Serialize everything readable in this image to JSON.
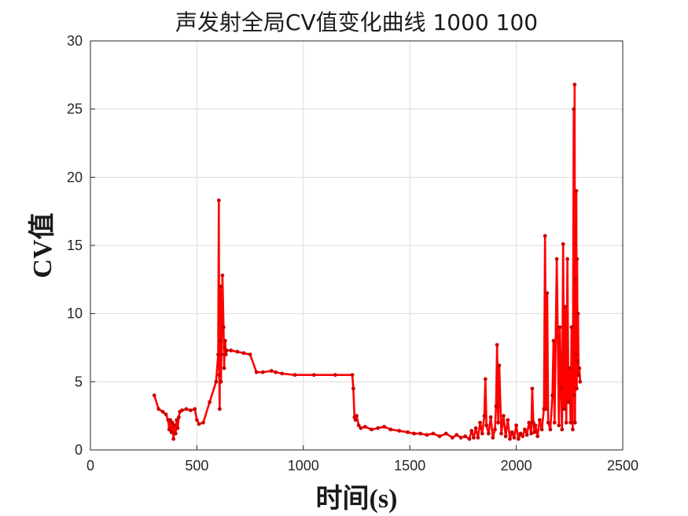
{
  "chart_data": {
    "type": "line",
    "title": "声发射全局CV值变化曲线 1000 100",
    "xlabel": "时间(s)",
    "ylabel": "CV值",
    "xlim": [
      0,
      2500
    ],
    "ylim": [
      0,
      30
    ],
    "xticks": [
      0,
      500,
      1000,
      1500,
      2000,
      2500
    ],
    "yticks": [
      0,
      5,
      10,
      15,
      20,
      25,
      30
    ],
    "grid": true,
    "line_color": "#ff0000",
    "marker_color": "#cc0000",
    "series": [
      {
        "x": [
          300,
          320,
          340,
          355,
          365,
          370,
          375,
          380,
          385,
          390,
          395,
          400,
          405,
          410,
          415,
          420,
          430,
          450,
          470,
          490,
          500,
          510,
          530,
          560,
          590,
          600,
          603,
          605,
          607,
          609,
          611,
          613,
          615,
          620,
          625,
          628,
          630,
          633,
          636,
          640,
          660,
          690,
          720,
          750,
          780,
          810,
          850,
          870,
          900,
          960,
          1050,
          1150,
          1230,
          1235,
          1240,
          1245,
          1250,
          1260,
          1270,
          1290,
          1320,
          1350,
          1380,
          1410,
          1450,
          1490,
          1520,
          1550,
          1580,
          1610,
          1640,
          1670,
          1700,
          1720,
          1740,
          1760,
          1780,
          1790,
          1800,
          1810,
          1820,
          1830,
          1840,
          1850,
          1855,
          1860,
          1870,
          1880,
          1890,
          1900,
          1905,
          1910,
          1915,
          1920,
          1930,
          1940,
          1950,
          1960,
          1970,
          1980,
          1990,
          2000,
          2010,
          2020,
          2030,
          2040,
          2050,
          2060,
          2070,
          2075,
          2080,
          2085,
          2090,
          2100,
          2110,
          2120,
          2130,
          2135,
          2140,
          2145,
          2150,
          2160,
          2170,
          2175,
          2180,
          2190,
          2200,
          2205,
          2210,
          2215,
          2220,
          2225,
          2230,
          2235,
          2240,
          2245,
          2250,
          2255,
          2260,
          2265,
          2270,
          2272,
          2274,
          2276,
          2278,
          2280,
          2282,
          2284,
          2286,
          2288,
          2290,
          2293,
          2296,
          2300
        ],
        "y": [
          4.0,
          3.0,
          2.8,
          2.6,
          2.2,
          1.5,
          2.2,
          1.3,
          2.0,
          0.8,
          1.8,
          1.2,
          2.2,
          1.6,
          2.4,
          2.8,
          2.9,
          3.0,
          2.9,
          3.0,
          2.2,
          1.9,
          2.0,
          3.5,
          5.0,
          7.0,
          18.3,
          5.5,
          3.0,
          12.0,
          8.0,
          5.0,
          7.0,
          12.8,
          9.0,
          6.0,
          7.5,
          8.0,
          7.0,
          7.3,
          7.3,
          7.2,
          7.1,
          7.0,
          5.7,
          5.7,
          5.8,
          5.7,
          5.6,
          5.5,
          5.5,
          5.5,
          5.5,
          4.5,
          2.4,
          2.2,
          2.5,
          1.8,
          1.6,
          1.7,
          1.5,
          1.6,
          1.7,
          1.5,
          1.4,
          1.3,
          1.2,
          1.2,
          1.1,
          1.2,
          1.0,
          1.2,
          0.9,
          1.1,
          0.9,
          1.0,
          0.8,
          1.4,
          0.9,
          1.6,
          0.9,
          2.0,
          1.2,
          2.5,
          5.2,
          1.8,
          1.2,
          2.4,
          0.9,
          1.5,
          3.2,
          7.7,
          2.0,
          6.2,
          1.2,
          2.5,
          1.0,
          2.2,
          0.8,
          1.3,
          0.9,
          1.8,
          0.8,
          1.2,
          1.0,
          1.5,
          1.1,
          2.0,
          1.2,
          4.5,
          2.0,
          1.3,
          1.8,
          1.0,
          2.2,
          1.5,
          3.0,
          15.7,
          3.0,
          11.5,
          2.0,
          1.5,
          4.0,
          8.0,
          2.0,
          14.0,
          1.8,
          9.0,
          4.5,
          1.5,
          15.1,
          3.0,
          10.5,
          2.0,
          14.0,
          3.5,
          6.0,
          2.0,
          9.0,
          1.5,
          25.0,
          4.0,
          26.8,
          2.0,
          12.5,
          7.0,
          19.0,
          4.5,
          14.0,
          6.5,
          10.0,
          5.5,
          6.0,
          5.0
        ]
      }
    ]
  }
}
